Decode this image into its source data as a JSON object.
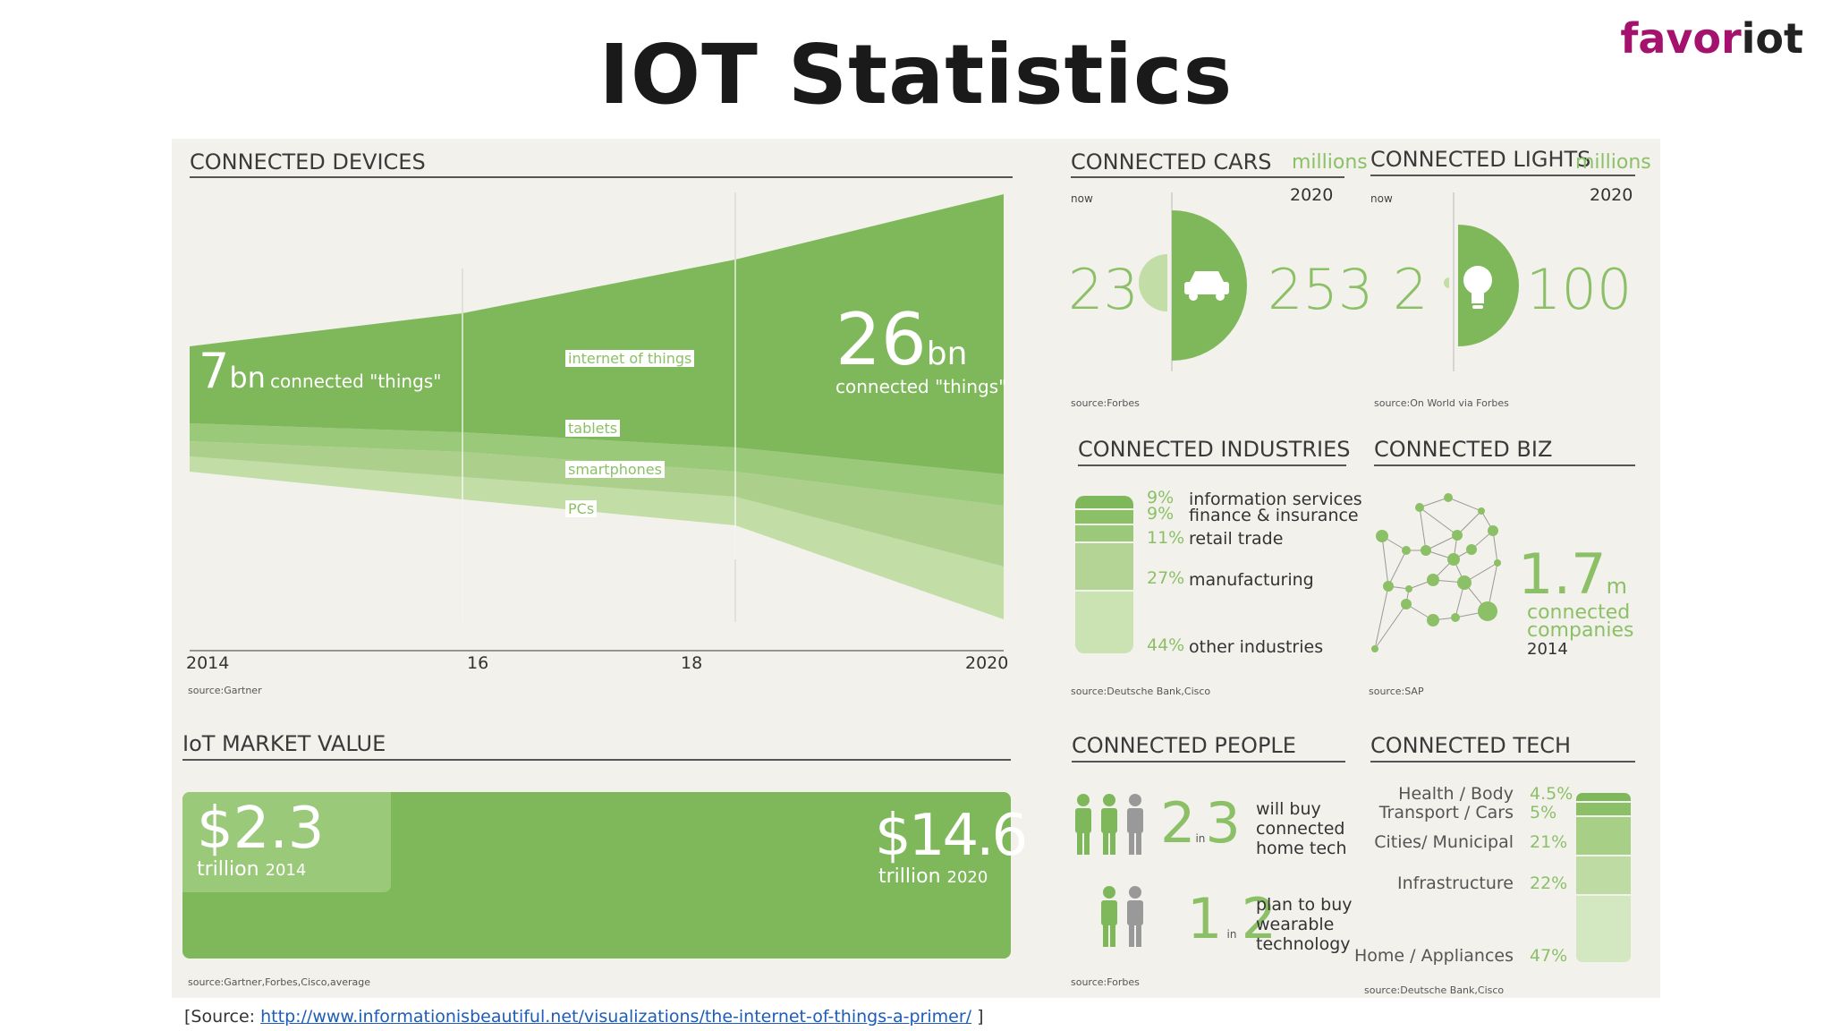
{
  "title": "IOT Statistics",
  "logo": {
    "part1": "favor",
    "part2": "iot"
  },
  "devices": {
    "heading": "CONNECTED DEVICES",
    "start_num": "7",
    "start_unit": "bn",
    "start_label": "connected \"things\"",
    "end_num": "26",
    "end_unit": "bn",
    "end_label": "connected \"things\"",
    "layers": [
      "internet of things",
      "tablets",
      "smartphones",
      "PCs"
    ],
    "ticks": [
      "2014",
      "16",
      "18",
      "2020"
    ],
    "source": "source:Gartner"
  },
  "market": {
    "heading": "IoT MARKET VALUE",
    "start_value": "$2.3",
    "start_unit": "trillion",
    "start_year": "2014",
    "end_value": "$14.6",
    "end_unit": "trillion",
    "end_year": "2020",
    "source": "source:Gartner,Forbes,Cisco,average"
  },
  "cars": {
    "heading": "CONNECTED CARS",
    "unit": "millions",
    "now_label": "now",
    "future_label": "2020",
    "now_value": "23",
    "future_value": "253",
    "icon": "car-icon",
    "source": "source:Forbes"
  },
  "lights": {
    "heading": "CONNECTED LIGHTS",
    "unit": "millions",
    "now_label": "now",
    "future_label": "2020",
    "now_value": "2",
    "future_value": "100",
    "icon": "lightbulb-icon",
    "source": "source:On World via Forbes"
  },
  "industries": {
    "heading": "CONNECTED INDUSTRIES",
    "items": [
      {
        "pct": "9%",
        "label": "information services"
      },
      {
        "pct": "9%",
        "label": "finance & insurance"
      },
      {
        "pct": "11%",
        "label": "retail trade"
      },
      {
        "pct": "27%",
        "label": "manufacturing"
      },
      {
        "pct": "44%",
        "label": "other industries"
      }
    ],
    "source": "source:Deutsche Bank,Cisco"
  },
  "biz": {
    "heading": "CONNECTED BIZ",
    "value": "1.7",
    "unit": "m",
    "label_line1": "connected",
    "label_line2": "companies",
    "year": "2014",
    "source": "source:SAP"
  },
  "people": {
    "heading": "CONNECTED PEOPLE",
    "row1": {
      "a": "2",
      "in": "in",
      "b": "3",
      "text": [
        "will buy",
        "connected",
        "home tech"
      ]
    },
    "row2": {
      "a": "1",
      "in": "in",
      "b": "2",
      "text": [
        "plan to buy",
        "wearable",
        "technology"
      ]
    },
    "source": "source:Forbes"
  },
  "tech": {
    "heading": "CONNECTED TECH",
    "items": [
      {
        "label": "Health / Body",
        "pct": "4.5%"
      },
      {
        "label": "Transport / Cars",
        "pct": "5%"
      },
      {
        "label": "Cities/ Municipal",
        "pct": "21%"
      },
      {
        "label": "Infrastructure",
        "pct": "22%"
      },
      {
        "label": "Home / Appliances",
        "pct": "47%"
      }
    ],
    "source": "source:Deutsche Bank,Cisco"
  },
  "footer": {
    "prefix": "[Source: ",
    "url": "http://www.informationisbeautiful.net/visualizations/the-internet-of-things-a-primer/",
    "suffix": " ]"
  },
  "colors": {
    "accent": "#8cc067",
    "logo": "#a4126e",
    "panel": "#f3f1ec"
  }
}
